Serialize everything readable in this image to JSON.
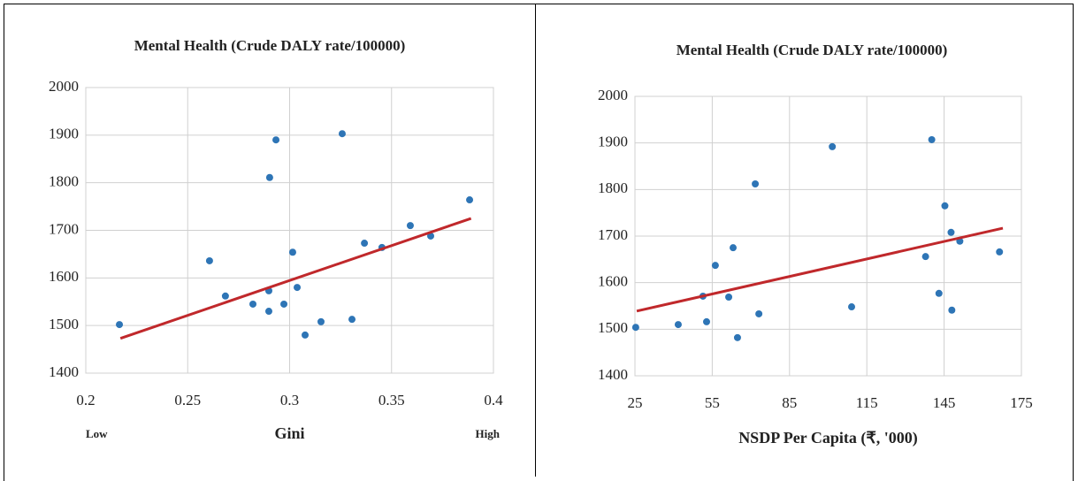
{
  "chart_data": [
    {
      "type": "scatter",
      "title": "Mental Health (Crude DALY rate/100000)",
      "xlabel": "Gini",
      "annotations": [
        "Low",
        "High"
      ],
      "x": [
        0.2165,
        0.2607,
        0.2685,
        0.282,
        0.2898,
        0.2898,
        0.2902,
        0.2933,
        0.2972,
        0.3015,
        0.3037,
        0.3076,
        0.3154,
        0.3258,
        0.3306,
        0.3367,
        0.3453,
        0.3592,
        0.3692,
        0.3883
      ],
      "series": [
        {
          "color": "#2e75b6",
          "values": [
            1502,
            1636,
            1562,
            1545,
            1573,
            1530,
            1811,
            1890,
            1545,
            1654,
            1580,
            1480,
            1508,
            1903,
            1513,
            1673,
            1664,
            1710,
            1688,
            1764
          ]
        }
      ],
      "trendline": {
        "color": "#c0282b",
        "x": [
          0.217,
          0.389
        ],
        "y": [
          1473,
          1725
        ]
      },
      "xlim": [
        0.2,
        0.4
      ],
      "xticks": [
        0.2,
        0.25,
        0.3,
        0.35,
        0.4
      ],
      "ylim": [
        1400,
        2000
      ],
      "yticks": [
        1400,
        1500,
        1600,
        1700,
        1800,
        1900,
        2000
      ],
      "grid": true
    },
    {
      "type": "scatter",
      "title": "Mental Health (Crude DALY rate/100000)",
      "xlabel": "NSDP Per Capita (₹, '000)",
      "x": [
        25.3,
        41.8,
        51.4,
        52.8,
        56.2,
        61.4,
        63.1,
        64.8,
        71.7,
        73.1,
        101.6,
        109.1,
        137.8,
        140.2,
        145.3,
        147.7,
        143.0,
        148.0,
        151.1,
        166.5
      ],
      "series": [
        {
          "color": "#2e75b6",
          "values": [
            1504,
            1510,
            1571,
            1516,
            1637,
            1569,
            1675,
            1482,
            1812,
            1533,
            1892,
            1548,
            1656,
            1907,
            1765,
            1708,
            1577,
            1541,
            1689,
            1666
          ]
        }
      ],
      "trendline": {
        "color": "#c0282b",
        "x": [
          25.7,
          167.8
        ],
        "y": [
          1539,
          1717
        ]
      },
      "xlim": [
        25,
        175
      ],
      "xticks": [
        25,
        55,
        85,
        115,
        145,
        175
      ],
      "ylim": [
        1400,
        2000
      ],
      "yticks": [
        1400,
        1500,
        1600,
        1700,
        1800,
        1900,
        2000
      ],
      "grid": true
    }
  ]
}
